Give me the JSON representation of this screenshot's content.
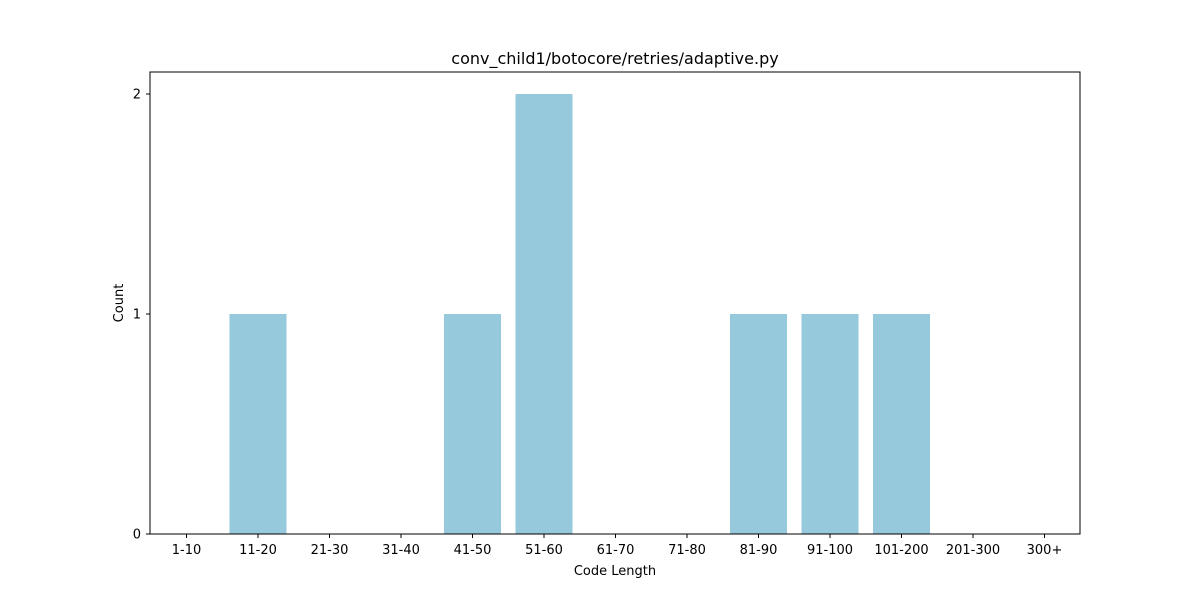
{
  "chart_data": {
    "type": "bar",
    "title": "conv_child1/botocore/retries/adaptive.py",
    "xlabel": "Code Length",
    "ylabel": "Count",
    "categories": [
      "1-10",
      "11-20",
      "21-30",
      "31-40",
      "41-50",
      "51-60",
      "61-70",
      "71-80",
      "81-90",
      "91-100",
      "101-200",
      "201-300",
      "300+"
    ],
    "values": [
      0,
      1,
      0,
      0,
      1,
      2,
      0,
      0,
      1,
      1,
      1,
      0,
      0
    ],
    "yticks": [
      "0",
      "1",
      "2"
    ],
    "ylim": [
      0,
      2.1
    ],
    "grid": false,
    "legend": "none",
    "bar_color": "#96c9dc"
  }
}
